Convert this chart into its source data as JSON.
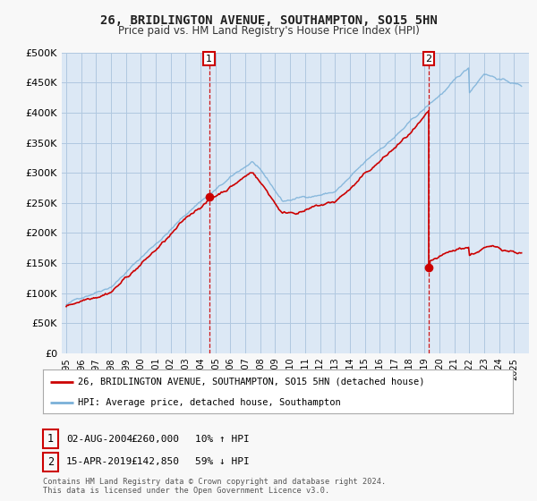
{
  "title": "26, BRIDLINGTON AVENUE, SOUTHAMPTON, SO15 5HN",
  "subtitle": "Price paid vs. HM Land Registry's House Price Index (HPI)",
  "background_color": "#f8f8f8",
  "plot_background": "#dce8f5",
  "grid_color": "#b0c8e0",
  "ylim": [
    0,
    500000
  ],
  "yticks": [
    0,
    50000,
    100000,
    150000,
    200000,
    250000,
    300000,
    350000,
    400000,
    450000,
    500000
  ],
  "ytick_labels": [
    "£0",
    "£50K",
    "£100K",
    "£150K",
    "£200K",
    "£250K",
    "£300K",
    "£350K",
    "£400K",
    "£450K",
    "£500K"
  ],
  "sale1_date_num": 2004.58,
  "sale1_price": 260000,
  "sale2_date_num": 2019.29,
  "sale2_price": 142850,
  "sale1_color": "#cc0000",
  "sale2_color": "#cc0000",
  "vline_color": "#cc0000",
  "hpi_color": "#7ab0d8",
  "sold_color": "#cc0000",
  "legend1_text": "26, BRIDLINGTON AVENUE, SOUTHAMPTON, SO15 5HN (detached house)",
  "legend2_text": "HPI: Average price, detached house, Southampton",
  "table_row1": [
    "1",
    "02-AUG-2004",
    "£260,000",
    "10% ↑ HPI"
  ],
  "table_row2": [
    "2",
    "15-APR-2019",
    "£142,850",
    "59% ↓ HPI"
  ],
  "footnote": "Contains HM Land Registry data © Crown copyright and database right 2024.\nThis data is licensed under the Open Government Licence v3.0."
}
